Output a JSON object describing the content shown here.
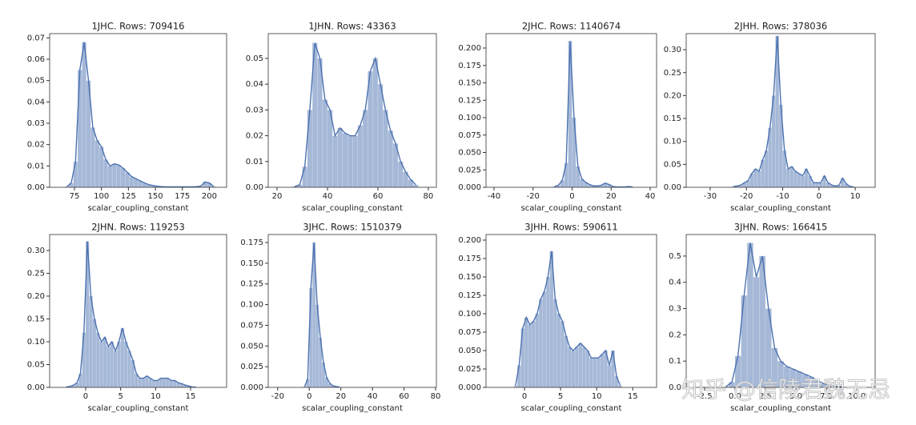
{
  "chart_data": [
    {
      "type": "histogram",
      "title": "1JHC. Rows: 709416",
      "xlabel": "scalar_coupling_constant",
      "color": "#4c72b0",
      "bins": [
        66,
        70,
        74,
        78,
        82,
        86,
        90,
        94,
        98,
        102,
        106,
        110,
        114,
        118,
        122,
        126,
        130,
        134,
        138,
        142,
        146,
        150,
        154,
        158,
        162,
        166,
        170,
        174,
        178,
        182,
        186,
        190,
        194,
        198,
        202,
        206
      ],
      "values": [
        0.0003,
        0.002,
        0.012,
        0.055,
        0.068,
        0.05,
        0.028,
        0.022,
        0.019,
        0.013,
        0.01,
        0.011,
        0.0105,
        0.009,
        0.007,
        0.005,
        0.004,
        0.003,
        0.002,
        0.0012,
        0.0008,
        0.0005,
        0.0003,
        0.0002,
        0.0002,
        0.0002,
        0.0002,
        0.0002,
        0.0002,
        0.0002,
        0.0003,
        0.0005,
        0.0025,
        0.002,
        0.0004
      ],
      "xlim": [
        52,
        216
      ],
      "xticks": [
        75,
        100,
        125,
        150,
        175,
        200
      ],
      "ylim": [
        0,
        0.072
      ],
      "yticks": [
        {
          "value": 0,
          "label": "0.00"
        },
        0.01,
        0.02,
        0.03,
        0.04,
        0.05,
        0.06,
        0.07
      ]
    },
    {
      "type": "histogram",
      "title": "1JHN. Rows: 43363",
      "xlabel": "scalar_coupling_constant",
      "color": "#4c72b0",
      "bins": [
        26,
        28,
        30,
        32,
        34,
        36,
        38,
        40,
        42,
        44,
        46,
        48,
        50,
        52,
        54,
        56,
        58,
        60,
        62,
        64,
        66,
        68,
        70,
        72,
        74,
        76
      ],
      "values": [
        0.0003,
        0.001,
        0.008,
        0.03,
        0.056,
        0.05,
        0.034,
        0.03,
        0.02,
        0.023,
        0.021,
        0.02,
        0.02,
        0.024,
        0.03,
        0.045,
        0.05,
        0.04,
        0.03,
        0.022,
        0.017,
        0.01,
        0.006,
        0.003,
        0.001
      ],
      "xlim": [
        16.5,
        83.2
      ],
      "xticks": [
        20,
        40,
        60,
        80
      ],
      "ylim": [
        0,
        0.0596
      ],
      "yticks": [
        {
          "value": 0,
          "label": "0.00"
        },
        0.01,
        0.02,
        0.03,
        0.04,
        0.05
      ]
    },
    {
      "type": "histogram",
      "title": "2JHC. Rows: 1140674",
      "xlabel": "scalar_coupling_constant",
      "color": "#4c72b0",
      "bins": [
        -10,
        -8,
        -6,
        -4,
        -2,
        0,
        2,
        4,
        6,
        8,
        10,
        12,
        14,
        16,
        18,
        20,
        22,
        24,
        26,
        28,
        30,
        32
      ],
      "values": [
        0.001,
        0.003,
        0.01,
        0.035,
        0.21,
        0.1,
        0.03,
        0.012,
        0.007,
        0.004,
        0.002,
        0.002,
        0.003,
        0.006,
        0.004,
        0.001,
        0.0005,
        0.0005,
        0.0005,
        0.001,
        0.0005
      ],
      "xlim": [
        -44.1,
        43.3
      ],
      "xticks": [
        -40,
        -20,
        0,
        20,
        40
      ],
      "ylim": [
        0,
        0.2207
      ],
      "yticks": [
        {
          "value": 0,
          "label": "0.000"
        },
        0.025,
        {
          "value": 0.05,
          "label": "0.050"
        },
        0.075,
        {
          "value": 0.1,
          "label": "0.100"
        },
        0.125,
        {
          "value": 0.15,
          "label": "0.150"
        },
        0.175,
        {
          "value": 0.2,
          "label": "0.200"
        }
      ]
    },
    {
      "type": "histogram",
      "title": "2JHH. Rows: 378036",
      "xlabel": "scalar_coupling_constant",
      "color": "#4c72b0",
      "bins": [
        -24,
        -23,
        -22,
        -21,
        -20,
        -19,
        -18,
        -17,
        -16,
        -15,
        -14,
        -13,
        -12,
        -11,
        -10,
        -9,
        -8,
        -7,
        -6,
        -5,
        -4,
        -3,
        -2,
        -1,
        0,
        1,
        2,
        3,
        4,
        5,
        6,
        7,
        8,
        9,
        10
      ],
      "values": [
        0.002,
        0.003,
        0.005,
        0.01,
        0.015,
        0.03,
        0.04,
        0.035,
        0.06,
        0.08,
        0.13,
        0.2,
        0.33,
        0.18,
        0.08,
        0.04,
        0.045,
        0.035,
        0.03,
        0.025,
        0.04,
        0.025,
        0.01,
        0.01,
        0.01,
        0.025,
        0.01,
        0.005,
        0.003,
        0.004,
        0.02,
        0.008,
        0.002,
        0.001
      ],
      "xlim": [
        -36.6,
        15.5
      ],
      "xticks": [
        -30,
        -20,
        -10,
        0,
        10
      ],
      "ylim": [
        0,
        0.3351
      ],
      "yticks": [
        {
          "value": 0,
          "label": "0.00"
        },
        0.05,
        {
          "value": 0.1,
          "label": "0.10"
        },
        0.15,
        {
          "value": 0.2,
          "label": "0.20"
        },
        0.25,
        {
          "value": 0.3,
          "label": "0.30"
        }
      ]
    },
    {
      "type": "histogram",
      "title": "2JHN. Rows: 119253",
      "xlabel": "scalar_coupling_constant",
      "color": "#4c72b0",
      "bins": [
        -3,
        -2.5,
        -2,
        -1.5,
        -1,
        -0.5,
        0,
        0.5,
        1,
        1.5,
        2,
        2.5,
        3,
        3.5,
        4,
        4.5,
        5,
        5.5,
        6,
        6.5,
        7,
        7.5,
        8,
        8.5,
        9,
        9.5,
        10,
        10.5,
        11,
        11.5,
        12,
        12.5,
        13,
        13.5,
        14,
        14.5,
        15,
        15.5,
        16
      ],
      "values": [
        0.001,
        0.002,
        0.005,
        0.01,
        0.03,
        0.12,
        0.32,
        0.2,
        0.15,
        0.12,
        0.1,
        0.11,
        0.09,
        0.1,
        0.08,
        0.1,
        0.13,
        0.1,
        0.08,
        0.06,
        0.03,
        0.02,
        0.02,
        0.025,
        0.02,
        0.015,
        0.015,
        0.02,
        0.02,
        0.02,
        0.015,
        0.015,
        0.01,
        0.008,
        0.005,
        0.003,
        0.001,
        0.0005
      ],
      "xlim": [
        -5.15,
        20.15
      ],
      "xticks": [
        0,
        5,
        10,
        15
      ],
      "ylim": [
        0,
        0.335
      ],
      "yticks": [
        {
          "value": 0,
          "label": "0.00"
        },
        0.05,
        {
          "value": 0.1,
          "label": "0.10"
        },
        0.15,
        {
          "value": 0.2,
          "label": "0.20"
        },
        0.25,
        {
          "value": 0.3,
          "label": "0.30"
        }
      ]
    },
    {
      "type": "histogram",
      "title": "3JHC. Rows: 1510379",
      "xlabel": "scalar_coupling_constant",
      "color": "#4c72b0",
      "bins": [
        -4,
        -2,
        0,
        2,
        4,
        6,
        8,
        10,
        12,
        14,
        16,
        18,
        20
      ],
      "values": [
        0.001,
        0.01,
        0.12,
        0.175,
        0.1,
        0.06,
        0.03,
        0.012,
        0.005,
        0.002,
        0.001,
        0.0005
      ],
      "xlim": [
        -26,
        80.5
      ],
      "xticks": [
        -20,
        0,
        20,
        40,
        60,
        80
      ],
      "ylim": [
        0,
        0.1847
      ],
      "yticks": [
        {
          "value": 0,
          "label": "0.000"
        },
        0.025,
        {
          "value": 0.05,
          "label": "0.050"
        },
        0.075,
        {
          "value": 0.1,
          "label": "0.100"
        },
        0.125,
        {
          "value": 0.15,
          "label": "0.150"
        },
        0.175
      ]
    },
    {
      "type": "histogram",
      "title": "3JHH. Rows: 590611",
      "xlabel": "scalar_coupling_constant",
      "color": "#4c72b0",
      "bins": [
        -1.5,
        -1,
        -0.5,
        0,
        0.5,
        1,
        1.5,
        2,
        2.5,
        3,
        3.5,
        4,
        4.5,
        5,
        5.5,
        6,
        6.5,
        7,
        7.5,
        8,
        8.5,
        9,
        9.5,
        10,
        10.5,
        11,
        11.5,
        12,
        12.5,
        13,
        13.5
      ],
      "values": [
        0.002,
        0.03,
        0.08,
        0.095,
        0.085,
        0.09,
        0.1,
        0.12,
        0.13,
        0.15,
        0.185,
        0.12,
        0.1,
        0.09,
        0.07,
        0.055,
        0.05,
        0.055,
        0.06,
        0.055,
        0.05,
        0.04,
        0.04,
        0.04,
        0.045,
        0.05,
        0.03,
        0.05,
        0.015,
        0.003
      ],
      "xlim": [
        -5.33,
        18.3
      ],
      "xticks": [
        0,
        5,
        10,
        15
      ],
      "ylim": [
        0,
        0.2076
      ],
      "yticks": [
        {
          "value": 0,
          "label": "0.000"
        },
        0.025,
        {
          "value": 0.05,
          "label": "0.050"
        },
        0.075,
        {
          "value": 0.1,
          "label": "0.100"
        },
        0.125,
        {
          "value": 0.15,
          "label": "0.150"
        },
        0.175,
        {
          "value": 0.2,
          "label": "0.200"
        }
      ]
    },
    {
      "type": "histogram",
      "title": "3JHN. Rows: 166415",
      "xlabel": "scalar_coupling_constant",
      "color": "#4c72b0",
      "bins": [
        -1,
        -0.5,
        0,
        0.5,
        1,
        1.5,
        2,
        2.5,
        3,
        3.5,
        4,
        4.5,
        5,
        5.5,
        6,
        6.5,
        7,
        7.5,
        8,
        8.5,
        9
      ],
      "values": [
        0.002,
        0.02,
        0.12,
        0.35,
        0.55,
        0.42,
        0.5,
        0.3,
        0.15,
        0.1,
        0.08,
        0.07,
        0.06,
        0.05,
        0.04,
        0.025,
        0.015,
        0.008,
        0.004,
        0.002
      ],
      "xlim": [
        -4,
        11.5
      ],
      "xticks": [
        -2.5,
        {
          "value": 0,
          "label": "0.0"
        },
        2.5,
        {
          "value": 5,
          "label": "5.0"
        },
        7.5,
        {
          "value": 10,
          "label": "10.0"
        }
      ],
      "ylim": [
        0,
        0.582
      ],
      "yticks": [
        {
          "value": 0,
          "label": "0.0"
        },
        0.1,
        0.2,
        0.3,
        0.4,
        0.5
      ]
    }
  ],
  "watermark": "知乎 @信陵君魏无忌"
}
